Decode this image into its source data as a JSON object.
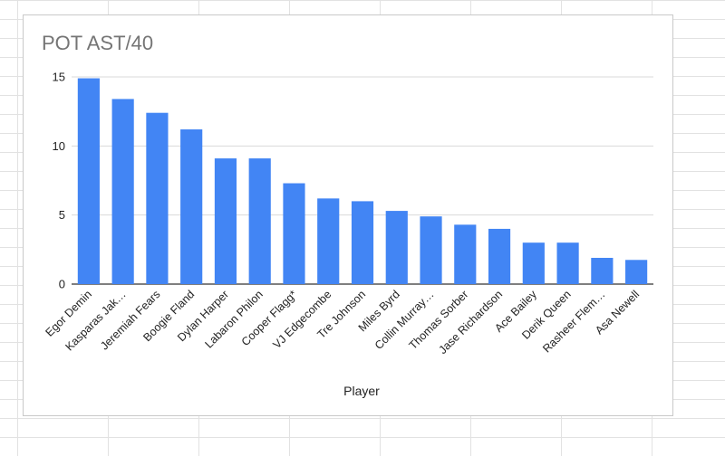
{
  "chart_data": {
    "type": "bar",
    "title": "POT AST/40",
    "xlabel": "Player",
    "ylabel": "",
    "ylim": [
      0,
      15
    ],
    "yticks": [
      0,
      5,
      10,
      15
    ],
    "grid": true,
    "legend": "none",
    "bar_color": "#4285f4",
    "categories": [
      "Egor Demin",
      "Kasparas Jak…",
      "Jeremiah Fears",
      "Boogie Fland",
      "Dylan Harper",
      "Labaron Philon",
      "Cooper Flagg*",
      "VJ Edgecombe",
      "Tre Johnson",
      "Miles Byrd",
      "Collin Murray…",
      "Thomas Sorber",
      "Jase Richardson",
      "Ace Bailey",
      "Derik Queen",
      "Rasheer Flem…",
      "Asa Newell"
    ],
    "values": [
      14.9,
      13.4,
      12.4,
      11.2,
      9.1,
      9.1,
      7.3,
      6.2,
      6.0,
      5.3,
      4.9,
      4.3,
      4.0,
      3.0,
      3.0,
      1.9,
      1.75
    ]
  }
}
